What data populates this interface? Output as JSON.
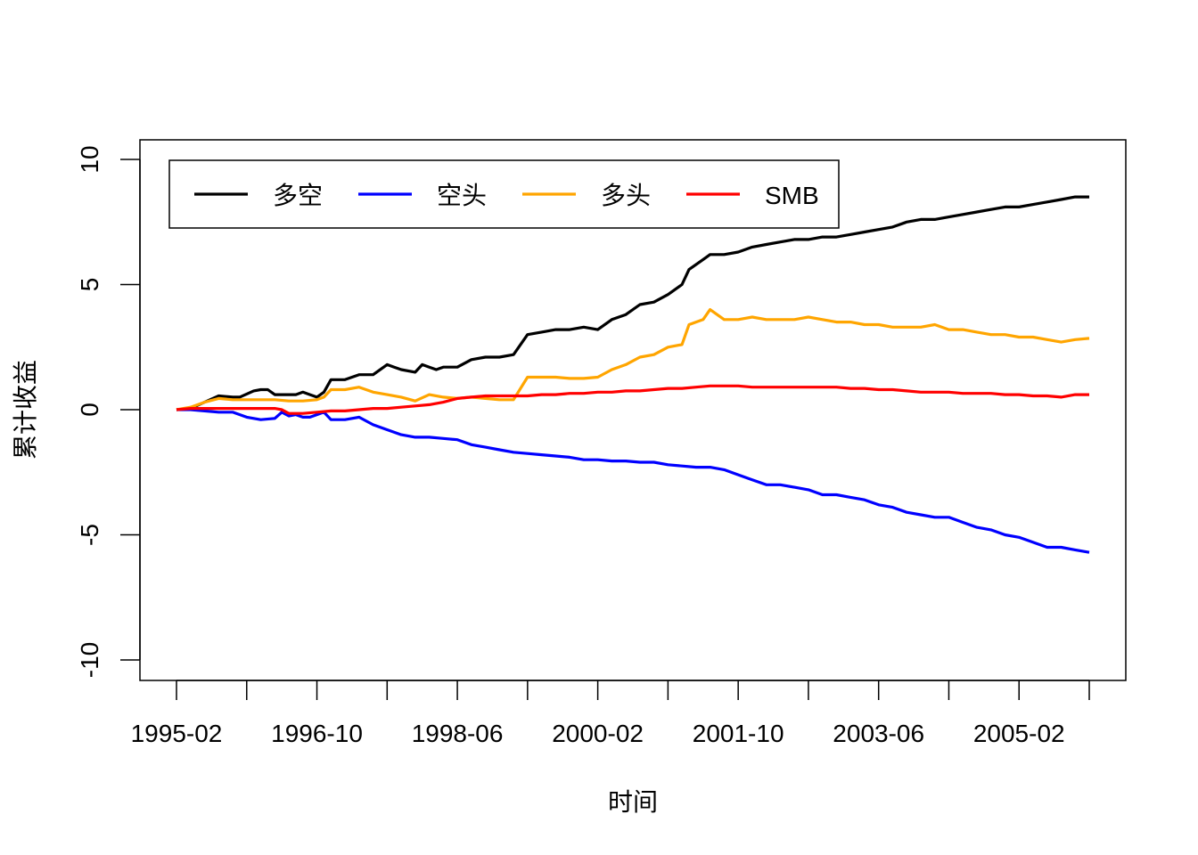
{
  "chart_data": {
    "type": "line",
    "title": "",
    "xlabel": "时间",
    "ylabel": "累计收益",
    "ylim": [
      -10,
      10
    ],
    "yticks": [
      -10,
      -5,
      0,
      5,
      10
    ],
    "xlim_index": [
      0,
      130
    ],
    "xtick_labels": [
      "1995-02",
      "1996-10",
      "1998-06",
      "2000-02",
      "2001-10",
      "2003-06",
      "2005-02"
    ],
    "xtick_label_index": [
      0,
      20,
      40,
      60,
      80,
      100,
      120
    ],
    "xtick_mark_index": [
      0,
      10,
      20,
      30,
      40,
      50,
      60,
      70,
      80,
      90,
      100,
      110,
      120,
      130
    ],
    "legend_position": "top-left",
    "grid": false,
    "series": [
      {
        "name": "多空",
        "color": "#000000",
        "points": [
          [
            0,
            0
          ],
          [
            2,
            0.05
          ],
          [
            4,
            0.3
          ],
          [
            6,
            0.55
          ],
          [
            8,
            0.5
          ],
          [
            9,
            0.5
          ],
          [
            11,
            0.75
          ],
          [
            12,
            0.8
          ],
          [
            13,
            0.8
          ],
          [
            14,
            0.6
          ],
          [
            15,
            0.6
          ],
          [
            16,
            0.6
          ],
          [
            17,
            0.6
          ],
          [
            18,
            0.7
          ],
          [
            19,
            0.6
          ],
          [
            20,
            0.5
          ],
          [
            21,
            0.7
          ],
          [
            22,
            1.2
          ],
          [
            24,
            1.2
          ],
          [
            26,
            1.4
          ],
          [
            28,
            1.4
          ],
          [
            30,
            1.8
          ],
          [
            31,
            1.7
          ],
          [
            32,
            1.6
          ],
          [
            34,
            1.5
          ],
          [
            35,
            1.8
          ],
          [
            36,
            1.7
          ],
          [
            37,
            1.6
          ],
          [
            38,
            1.7
          ],
          [
            40,
            1.7
          ],
          [
            42,
            2.0
          ],
          [
            44,
            2.1
          ],
          [
            46,
            2.1
          ],
          [
            48,
            2.2
          ],
          [
            50,
            3.0
          ],
          [
            52,
            3.1
          ],
          [
            54,
            3.2
          ],
          [
            56,
            3.2
          ],
          [
            58,
            3.3
          ],
          [
            60,
            3.2
          ],
          [
            62,
            3.6
          ],
          [
            64,
            3.8
          ],
          [
            66,
            4.2
          ],
          [
            68,
            4.3
          ],
          [
            70,
            4.6
          ],
          [
            71,
            4.8
          ],
          [
            72,
            5.0
          ],
          [
            73,
            5.6
          ],
          [
            75,
            6.0
          ],
          [
            76,
            6.2
          ],
          [
            78,
            6.2
          ],
          [
            80,
            6.3
          ],
          [
            82,
            6.5
          ],
          [
            84,
            6.6
          ],
          [
            86,
            6.7
          ],
          [
            88,
            6.8
          ],
          [
            90,
            6.8
          ],
          [
            92,
            6.9
          ],
          [
            94,
            6.9
          ],
          [
            96,
            7.0
          ],
          [
            98,
            7.1
          ],
          [
            100,
            7.2
          ],
          [
            102,
            7.3
          ],
          [
            104,
            7.5
          ],
          [
            106,
            7.6
          ],
          [
            108,
            7.6
          ],
          [
            110,
            7.7
          ],
          [
            112,
            7.8
          ],
          [
            114,
            7.9
          ],
          [
            116,
            8.0
          ],
          [
            118,
            8.1
          ],
          [
            120,
            8.1
          ],
          [
            122,
            8.2
          ],
          [
            124,
            8.3
          ],
          [
            126,
            8.4
          ],
          [
            128,
            8.5
          ],
          [
            130,
            8.5
          ]
        ]
      },
      {
        "name": "空头",
        "color": "#0000ff",
        "points": [
          [
            0,
            0
          ],
          [
            2,
            0
          ],
          [
            4,
            -0.05
          ],
          [
            6,
            -0.1
          ],
          [
            8,
            -0.1
          ],
          [
            10,
            -0.3
          ],
          [
            12,
            -0.4
          ],
          [
            14,
            -0.35
          ],
          [
            15,
            -0.1
          ],
          [
            16,
            -0.25
          ],
          [
            17,
            -0.2
          ],
          [
            18,
            -0.3
          ],
          [
            19,
            -0.3
          ],
          [
            20,
            -0.2
          ],
          [
            21,
            -0.1
          ],
          [
            22,
            -0.4
          ],
          [
            24,
            -0.4
          ],
          [
            26,
            -0.3
          ],
          [
            28,
            -0.6
          ],
          [
            30,
            -0.8
          ],
          [
            32,
            -1.0
          ],
          [
            34,
            -1.1
          ],
          [
            36,
            -1.1
          ],
          [
            38,
            -1.15
          ],
          [
            40,
            -1.2
          ],
          [
            42,
            -1.4
          ],
          [
            44,
            -1.5
          ],
          [
            46,
            -1.6
          ],
          [
            48,
            -1.7
          ],
          [
            50,
            -1.75
          ],
          [
            52,
            -1.8
          ],
          [
            54,
            -1.85
          ],
          [
            56,
            -1.9
          ],
          [
            58,
            -2.0
          ],
          [
            60,
            -2.0
          ],
          [
            62,
            -2.05
          ],
          [
            64,
            -2.05
          ],
          [
            66,
            -2.1
          ],
          [
            68,
            -2.1
          ],
          [
            70,
            -2.2
          ],
          [
            72,
            -2.25
          ],
          [
            74,
            -2.3
          ],
          [
            76,
            -2.3
          ],
          [
            78,
            -2.4
          ],
          [
            80,
            -2.6
          ],
          [
            82,
            -2.8
          ],
          [
            84,
            -3.0
          ],
          [
            86,
            -3.0
          ],
          [
            88,
            -3.1
          ],
          [
            90,
            -3.2
          ],
          [
            92,
            -3.4
          ],
          [
            94,
            -3.4
          ],
          [
            96,
            -3.5
          ],
          [
            98,
            -3.6
          ],
          [
            100,
            -3.8
          ],
          [
            102,
            -3.9
          ],
          [
            104,
            -4.1
          ],
          [
            106,
            -4.2
          ],
          [
            108,
            -4.3
          ],
          [
            110,
            -4.3
          ],
          [
            112,
            -4.5
          ],
          [
            114,
            -4.7
          ],
          [
            116,
            -4.8
          ],
          [
            118,
            -5.0
          ],
          [
            120,
            -5.1
          ],
          [
            122,
            -5.3
          ],
          [
            124,
            -5.5
          ],
          [
            126,
            -5.5
          ],
          [
            128,
            -5.6
          ],
          [
            130,
            -5.7
          ]
        ]
      },
      {
        "name": "多头",
        "color": "#ffa500",
        "points": [
          [
            0,
            0
          ],
          [
            2,
            0.1
          ],
          [
            4,
            0.3
          ],
          [
            6,
            0.45
          ],
          [
            8,
            0.4
          ],
          [
            10,
            0.4
          ],
          [
            12,
            0.4
          ],
          [
            14,
            0.4
          ],
          [
            16,
            0.35
          ],
          [
            18,
            0.35
          ],
          [
            20,
            0.4
          ],
          [
            21,
            0.5
          ],
          [
            22,
            0.8
          ],
          [
            24,
            0.8
          ],
          [
            26,
            0.9
          ],
          [
            28,
            0.7
          ],
          [
            30,
            0.6
          ],
          [
            32,
            0.5
          ],
          [
            34,
            0.35
          ],
          [
            36,
            0.6
          ],
          [
            38,
            0.5
          ],
          [
            40,
            0.45
          ],
          [
            42,
            0.5
          ],
          [
            44,
            0.45
          ],
          [
            46,
            0.4
          ],
          [
            48,
            0.4
          ],
          [
            50,
            1.3
          ],
          [
            52,
            1.3
          ],
          [
            54,
            1.3
          ],
          [
            56,
            1.25
          ],
          [
            58,
            1.25
          ],
          [
            60,
            1.3
          ],
          [
            62,
            1.6
          ],
          [
            64,
            1.8
          ],
          [
            66,
            2.1
          ],
          [
            68,
            2.2
          ],
          [
            70,
            2.5
          ],
          [
            72,
            2.6
          ],
          [
            73,
            3.4
          ],
          [
            75,
            3.6
          ],
          [
            76,
            4.0
          ],
          [
            77,
            3.8
          ],
          [
            78,
            3.6
          ],
          [
            80,
            3.6
          ],
          [
            82,
            3.7
          ],
          [
            84,
            3.6
          ],
          [
            86,
            3.6
          ],
          [
            88,
            3.6
          ],
          [
            90,
            3.7
          ],
          [
            92,
            3.6
          ],
          [
            94,
            3.5
          ],
          [
            96,
            3.5
          ],
          [
            98,
            3.4
          ],
          [
            100,
            3.4
          ],
          [
            102,
            3.3
          ],
          [
            104,
            3.3
          ],
          [
            106,
            3.3
          ],
          [
            108,
            3.4
          ],
          [
            110,
            3.2
          ],
          [
            112,
            3.2
          ],
          [
            114,
            3.1
          ],
          [
            116,
            3.0
          ],
          [
            118,
            3.0
          ],
          [
            120,
            2.9
          ],
          [
            122,
            2.9
          ],
          [
            124,
            2.8
          ],
          [
            126,
            2.7
          ],
          [
            128,
            2.8
          ],
          [
            130,
            2.85
          ]
        ]
      },
      {
        "name": "SMB",
        "color": "#ff0000",
        "points": [
          [
            0,
            0
          ],
          [
            2,
            0.05
          ],
          [
            4,
            0.05
          ],
          [
            6,
            0.05
          ],
          [
            8,
            0.05
          ],
          [
            10,
            0.05
          ],
          [
            12,
            0.05
          ],
          [
            14,
            0.05
          ],
          [
            15,
            0.0
          ],
          [
            16,
            -0.15
          ],
          [
            18,
            -0.15
          ],
          [
            20,
            -0.1
          ],
          [
            22,
            -0.05
          ],
          [
            24,
            -0.05
          ],
          [
            26,
            0.0
          ],
          [
            28,
            0.05
          ],
          [
            30,
            0.05
          ],
          [
            32,
            0.1
          ],
          [
            34,
            0.15
          ],
          [
            36,
            0.2
          ],
          [
            38,
            0.3
          ],
          [
            40,
            0.45
          ],
          [
            42,
            0.5
          ],
          [
            44,
            0.55
          ],
          [
            46,
            0.55
          ],
          [
            48,
            0.55
          ],
          [
            50,
            0.55
          ],
          [
            52,
            0.6
          ],
          [
            54,
            0.6
          ],
          [
            56,
            0.65
          ],
          [
            58,
            0.65
          ],
          [
            60,
            0.7
          ],
          [
            62,
            0.7
          ],
          [
            64,
            0.75
          ],
          [
            66,
            0.75
          ],
          [
            68,
            0.8
          ],
          [
            70,
            0.85
          ],
          [
            72,
            0.85
          ],
          [
            74,
            0.9
          ],
          [
            76,
            0.95
          ],
          [
            78,
            0.95
          ],
          [
            80,
            0.95
          ],
          [
            82,
            0.9
          ],
          [
            84,
            0.9
          ],
          [
            86,
            0.9
          ],
          [
            88,
            0.9
          ],
          [
            90,
            0.9
          ],
          [
            92,
            0.9
          ],
          [
            94,
            0.9
          ],
          [
            96,
            0.85
          ],
          [
            98,
            0.85
          ],
          [
            100,
            0.8
          ],
          [
            102,
            0.8
          ],
          [
            104,
            0.75
          ],
          [
            106,
            0.7
          ],
          [
            108,
            0.7
          ],
          [
            110,
            0.7
          ],
          [
            112,
            0.65
          ],
          [
            114,
            0.65
          ],
          [
            116,
            0.65
          ],
          [
            118,
            0.6
          ],
          [
            120,
            0.6
          ],
          [
            122,
            0.55
          ],
          [
            124,
            0.55
          ],
          [
            126,
            0.5
          ],
          [
            128,
            0.6
          ],
          [
            130,
            0.6
          ]
        ]
      }
    ]
  }
}
